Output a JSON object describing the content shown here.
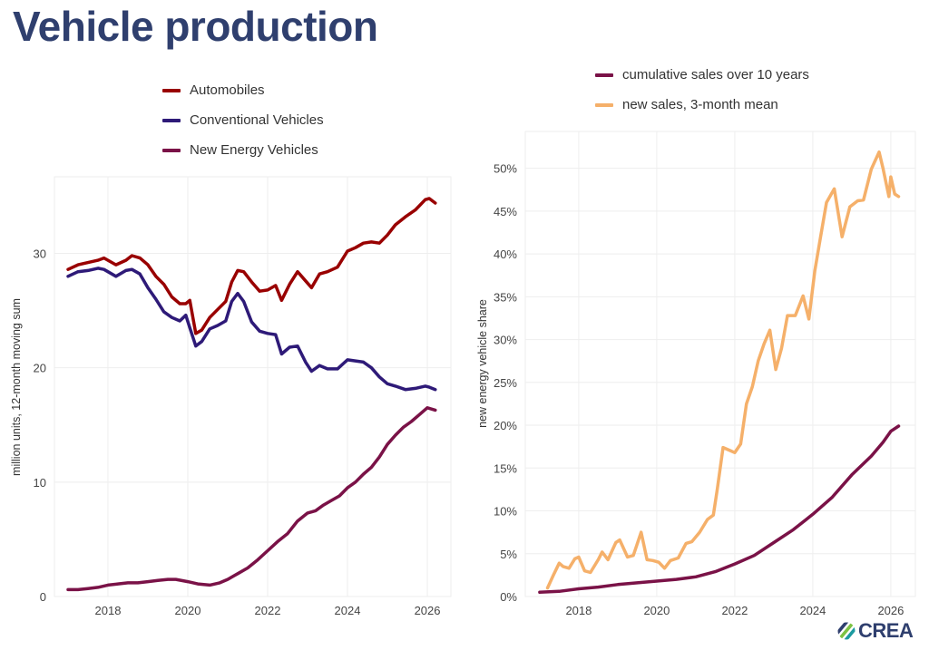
{
  "title": "Vehicle production",
  "brand": {
    "name": "CREA",
    "colors": [
      "#7cc242",
      "#1c9aa0",
      "#2f3f6e"
    ]
  },
  "chart_data": [
    {
      "type": "line",
      "panel": "left",
      "ylabel": "million units, 12-month moving sum",
      "xlabel": "",
      "xlim": [
        2016.66,
        2026.59
      ],
      "ylim": [
        0,
        36.7
      ],
      "xticks": [
        2018,
        2020,
        2022,
        2024,
        2026
      ],
      "xtick_labels": [
        "2018",
        "2020",
        "2022",
        "2024",
        "2026"
      ],
      "yticks": [
        0,
        10,
        20,
        30
      ],
      "ytick_labels": [
        "0",
        "10",
        "20",
        "30"
      ],
      "grid": true,
      "legend_position": "top",
      "series": [
        {
          "name": "Automobiles",
          "color": "#990000",
          "x": [
            2017.0,
            2017.25,
            2017.5,
            2017.75,
            2017.9,
            2018.2,
            2018.45,
            2018.6,
            2018.8,
            2019.0,
            2019.2,
            2019.4,
            2019.6,
            2019.8,
            2019.95,
            2020.05,
            2020.2,
            2020.35,
            2020.55,
            2020.75,
            2020.95,
            2021.1,
            2021.25,
            2021.4,
            2021.6,
            2021.8,
            2022.0,
            2022.2,
            2022.35,
            2022.55,
            2022.75,
            2022.95,
            2023.1,
            2023.3,
            2023.5,
            2023.75,
            2024.0,
            2024.2,
            2024.4,
            2024.6,
            2024.8,
            2025.0,
            2025.2,
            2025.45,
            2025.7,
            2025.95,
            2026.05,
            2026.2
          ],
          "y": [
            28.6,
            29.0,
            29.2,
            29.4,
            29.6,
            29.0,
            29.4,
            29.8,
            29.6,
            29.0,
            28.0,
            27.3,
            26.2,
            25.6,
            25.6,
            25.9,
            23.0,
            23.3,
            24.4,
            25.1,
            25.8,
            27.5,
            28.5,
            28.4,
            27.5,
            26.7,
            26.8,
            27.2,
            25.9,
            27.3,
            28.4,
            27.6,
            27.0,
            28.2,
            28.4,
            28.8,
            30.2,
            30.5,
            30.9,
            31.0,
            30.9,
            31.6,
            32.5,
            33.2,
            33.8,
            34.7,
            34.8,
            34.4
          ]
        },
        {
          "name": "Conventional Vehicles",
          "color": "#2e1a78",
          "x": [
            2017.0,
            2017.25,
            2017.5,
            2017.75,
            2017.9,
            2018.2,
            2018.45,
            2018.6,
            2018.8,
            2019.0,
            2019.2,
            2019.4,
            2019.6,
            2019.8,
            2019.95,
            2020.05,
            2020.2,
            2020.35,
            2020.55,
            2020.75,
            2020.95,
            2021.1,
            2021.25,
            2021.4,
            2021.6,
            2021.8,
            2022.0,
            2022.2,
            2022.35,
            2022.55,
            2022.75,
            2022.95,
            2023.1,
            2023.3,
            2023.5,
            2023.75,
            2024.0,
            2024.2,
            2024.4,
            2024.6,
            2024.8,
            2025.0,
            2025.2,
            2025.45,
            2025.7,
            2025.95,
            2026.05,
            2026.2
          ],
          "y": [
            28.0,
            28.4,
            28.5,
            28.7,
            28.6,
            28.0,
            28.5,
            28.6,
            28.2,
            27.0,
            26.0,
            24.9,
            24.4,
            24.1,
            24.6,
            23.5,
            21.9,
            22.3,
            23.4,
            23.7,
            24.1,
            25.8,
            26.5,
            25.8,
            24.0,
            23.2,
            23.0,
            22.9,
            21.2,
            21.8,
            21.9,
            20.5,
            19.7,
            20.2,
            19.9,
            19.9,
            20.7,
            20.6,
            20.5,
            20.0,
            19.2,
            18.6,
            18.4,
            18.1,
            18.2,
            18.4,
            18.3,
            18.1
          ]
        },
        {
          "name": "New Energy Vehicles",
          "color": "#7a1247",
          "x": [
            2017.0,
            2017.25,
            2017.5,
            2017.75,
            2018.0,
            2018.25,
            2018.5,
            2018.75,
            2019.0,
            2019.25,
            2019.5,
            2019.7,
            2020.0,
            2020.25,
            2020.55,
            2020.8,
            2021.0,
            2021.25,
            2021.5,
            2021.75,
            2022.0,
            2022.25,
            2022.5,
            2022.75,
            2023.0,
            2023.2,
            2023.4,
            2023.6,
            2023.8,
            2024.0,
            2024.2,
            2024.4,
            2024.6,
            2024.8,
            2025.0,
            2025.2,
            2025.4,
            2025.6,
            2025.8,
            2026.0,
            2026.2
          ],
          "y": [
            0.6,
            0.6,
            0.7,
            0.8,
            1.0,
            1.1,
            1.2,
            1.2,
            1.3,
            1.4,
            1.5,
            1.5,
            1.3,
            1.1,
            1.0,
            1.2,
            1.5,
            2.0,
            2.5,
            3.2,
            4.0,
            4.8,
            5.5,
            6.6,
            7.3,
            7.5,
            8.0,
            8.4,
            8.8,
            9.5,
            10.0,
            10.7,
            11.3,
            12.2,
            13.3,
            14.1,
            14.8,
            15.3,
            15.9,
            16.5,
            16.3
          ]
        }
      ]
    },
    {
      "type": "line",
      "panel": "right",
      "ylabel": "new energy vehicle share",
      "xlabel": "",
      "xlim": [
        2016.63,
        2026.63
      ],
      "ylim": [
        0,
        54.3
      ],
      "xticks": [
        2018,
        2020,
        2022,
        2024,
        2026
      ],
      "xtick_labels": [
        "2018",
        "2020",
        "2022",
        "2024",
        "2026"
      ],
      "yticks": [
        0,
        5,
        10,
        15,
        20,
        25,
        30,
        35,
        40,
        45,
        50
      ],
      "ytick_labels": [
        "0%",
        "5%",
        "10%",
        "15%",
        "20%",
        "25%",
        "30%",
        "35%",
        "40%",
        "45%",
        "50%"
      ],
      "grid": true,
      "legend_position": "top",
      "series": [
        {
          "name": "cumulative sales over 10 years",
          "color": "#7a1247",
          "x": [
            2017.0,
            2017.5,
            2018.0,
            2018.5,
            2019.0,
            2019.5,
            2020.0,
            2020.5,
            2021.0,
            2021.5,
            2022.0,
            2022.5,
            2023.0,
            2023.5,
            2024.0,
            2024.5,
            2025.0,
            2025.5,
            2025.8,
            2026.0,
            2026.2
          ],
          "y": [
            0.5,
            0.6,
            0.9,
            1.1,
            1.4,
            1.6,
            1.8,
            2.0,
            2.3,
            2.9,
            3.8,
            4.8,
            6.3,
            7.8,
            9.6,
            11.6,
            14.2,
            16.4,
            18.0,
            19.3,
            19.9
          ]
        },
        {
          "name": "new sales, 3-month mean",
          "color": "#f5b06a",
          "x": [
            2017.2,
            2017.35,
            2017.5,
            2017.6,
            2017.75,
            2017.9,
            2018.0,
            2018.15,
            2018.3,
            2018.5,
            2018.6,
            2018.75,
            2018.95,
            2019.05,
            2019.25,
            2019.4,
            2019.6,
            2019.75,
            2019.9,
            2020.05,
            2020.2,
            2020.35,
            2020.55,
            2020.75,
            2020.9,
            2021.1,
            2021.3,
            2021.45,
            2021.55,
            2021.7,
            2021.9,
            2022.0,
            2022.15,
            2022.3,
            2022.45,
            2022.6,
            2022.75,
            2022.9,
            2023.05,
            2023.2,
            2023.35,
            2023.55,
            2023.75,
            2023.9,
            2024.05,
            2024.2,
            2024.35,
            2024.55,
            2024.75,
            2024.95,
            2025.15,
            2025.3,
            2025.5,
            2025.7,
            2025.8,
            2025.95,
            2026.0,
            2026.1,
            2026.2
          ],
          "y": [
            1.0,
            2.5,
            3.9,
            3.5,
            3.3,
            4.4,
            4.6,
            3.0,
            2.8,
            4.3,
            5.2,
            4.3,
            6.3,
            6.6,
            4.6,
            4.8,
            7.5,
            4.3,
            4.2,
            4.0,
            3.3,
            4.2,
            4.5,
            6.2,
            6.4,
            7.5,
            9.0,
            9.5,
            12.5,
            17.4,
            17.0,
            16.8,
            17.8,
            22.5,
            24.5,
            27.5,
            29.5,
            31.1,
            26.5,
            29.0,
            32.8,
            32.8,
            35.1,
            32.4,
            38.0,
            42.0,
            46.0,
            47.6,
            42.0,
            45.5,
            46.2,
            46.3,
            49.9,
            51.9,
            50.0,
            46.7,
            49.0,
            47.0,
            46.7
          ]
        }
      ]
    }
  ]
}
